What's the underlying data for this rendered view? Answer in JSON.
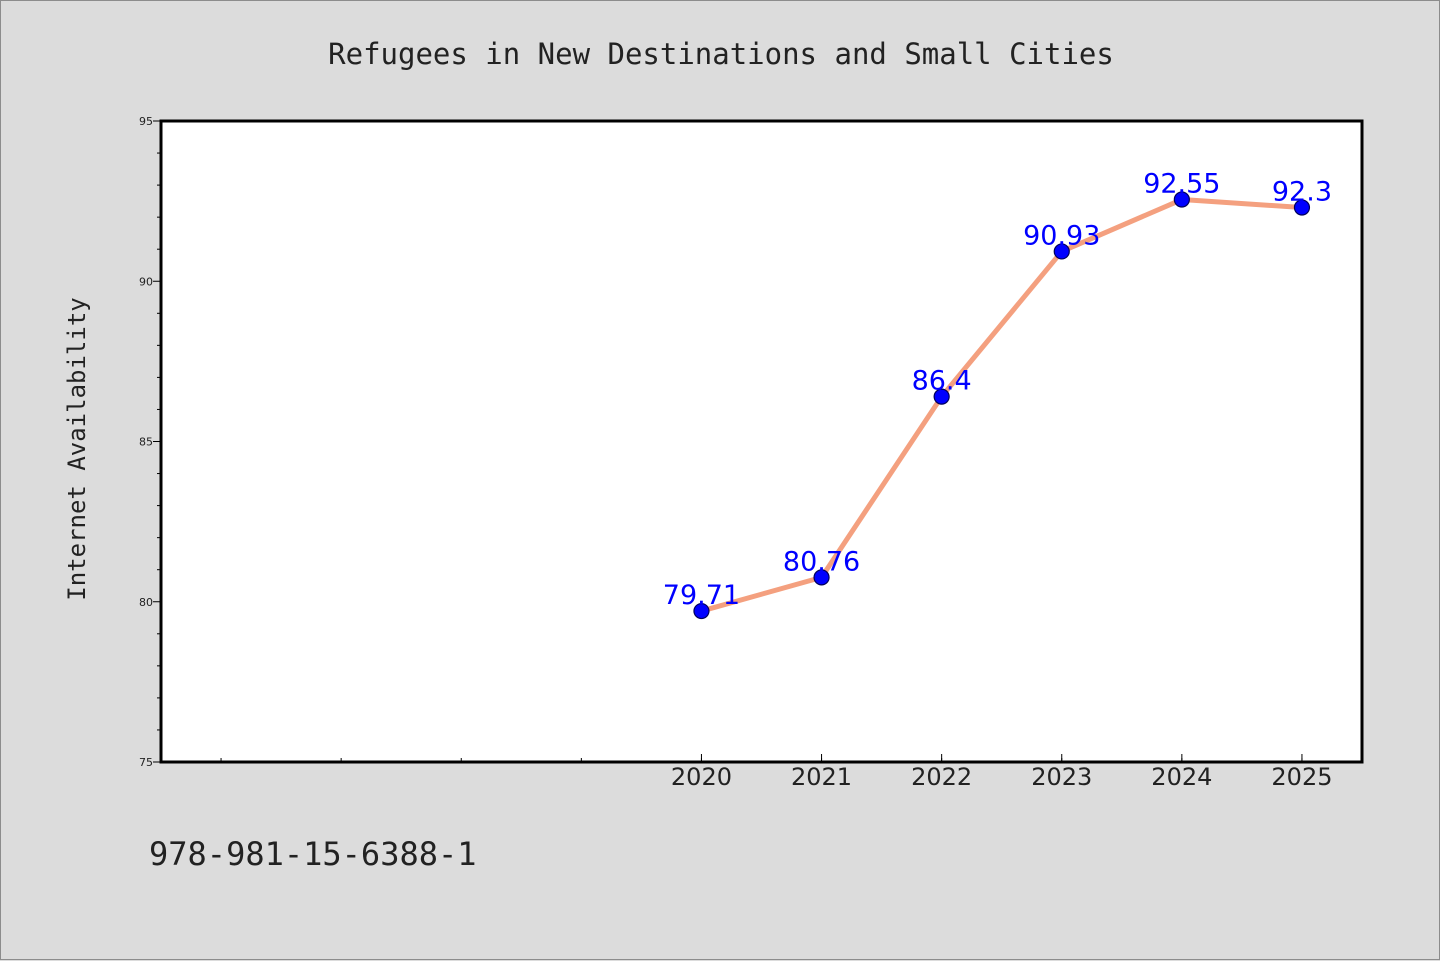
{
  "footer": {
    "text": "978-981-15-6388-1"
  },
  "chart_data": {
    "type": "line",
    "title": "Refugees in New Destinations and Small Cities",
    "xlabel": "",
    "ylabel": "Internet Availability",
    "x_tick_labels": [
      "2020",
      "2021",
      "2022",
      "2023",
      "2024",
      "2025"
    ],
    "x_values": [
      2020,
      2021,
      2022,
      2023,
      2024,
      2025
    ],
    "x_range": [
      2015.5,
      2025.5
    ],
    "y_values": [
      79.71,
      80.76,
      86.4,
      90.93,
      92.55,
      92.3
    ],
    "data_labels": [
      "79.71",
      "80.76",
      "86.4",
      "90.93",
      "92.55",
      "92.3"
    ],
    "y_range": [
      75,
      95
    ],
    "y_ticks": [
      75,
      80,
      85,
      90,
      95
    ],
    "grid": false,
    "legend": "none",
    "colors": {
      "line": "#f4a07f",
      "marker": "#0000ff",
      "marker_edge": "#00005a",
      "data_label": "#0000ff",
      "plot_bg": "#ffffff",
      "page_bg": "#dcdcdc"
    }
  }
}
